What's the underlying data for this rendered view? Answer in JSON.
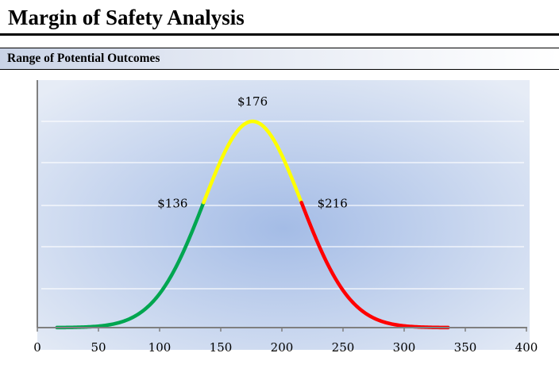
{
  "page": {
    "title": "Margin of Safety Analysis",
    "section_title": "Range of Potential Outcomes"
  },
  "colors": {
    "low": "#00a650",
    "mid": "#ffff00",
    "high": "#ff0000",
    "plot_center": "#a4bce6",
    "plot_edge": "#e6ecf6"
  },
  "chart_data": {
    "type": "line",
    "title": "Range of Potential Outcomes",
    "xlabel": "",
    "ylabel": "",
    "xlim": [
      0,
      400
    ],
    "x_ticks": [
      0,
      50,
      100,
      150,
      200,
      250,
      300,
      350,
      400
    ],
    "grid": true,
    "legend": "none",
    "distribution": {
      "mean": 176,
      "std_dev": 40,
      "x_range": [
        16,
        336
      ]
    },
    "series": [
      {
        "segment": "low",
        "x_range": [
          16,
          136
        ],
        "color": "#00a650"
      },
      {
        "segment": "mid",
        "x_range": [
          136,
          216
        ],
        "color": "#ffff00"
      },
      {
        "segment": "high",
        "x_range": [
          216,
          336
        ],
        "color": "#ff0000"
      }
    ],
    "annotations": [
      {
        "x": 136,
        "label": "$136"
      },
      {
        "x": 176,
        "label": "$176"
      },
      {
        "x": 216,
        "label": "$216"
      }
    ]
  }
}
